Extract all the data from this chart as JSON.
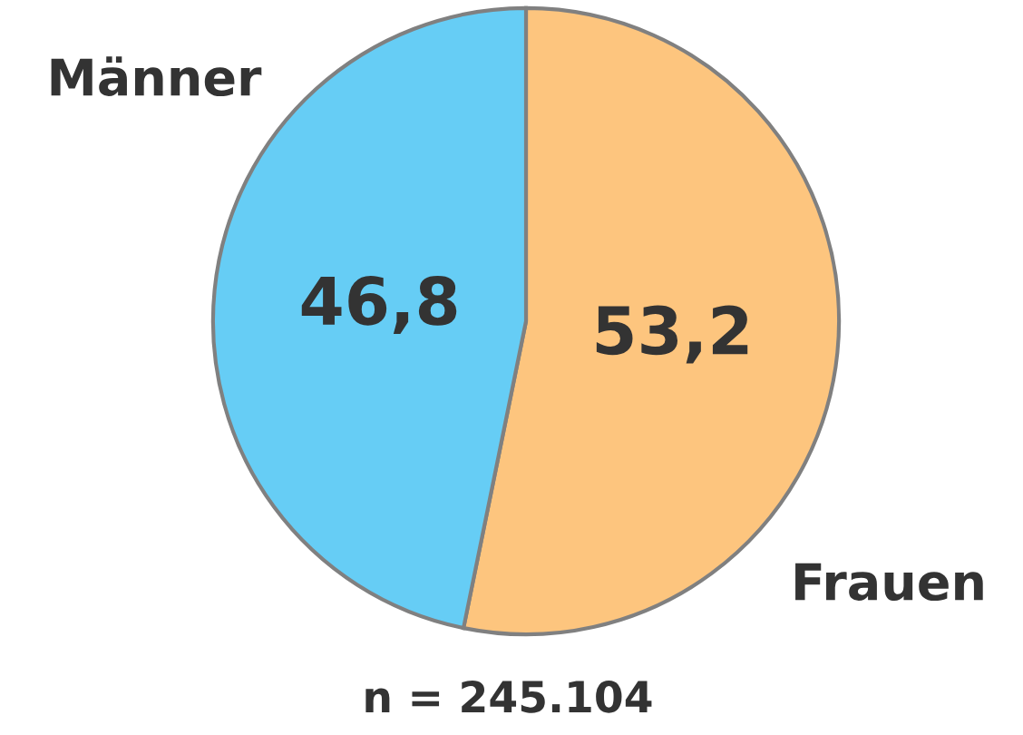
{
  "chart_data": {
    "type": "pie",
    "categories": [
      "Frauen",
      "Männer"
    ],
    "values": [
      53.2,
      46.8
    ],
    "colors": [
      "#fdc57e",
      "#66cdf5"
    ],
    "value_labels": [
      "53,2",
      "46,8"
    ],
    "annotations": [
      "n = 245.104"
    ],
    "legend": false
  }
}
